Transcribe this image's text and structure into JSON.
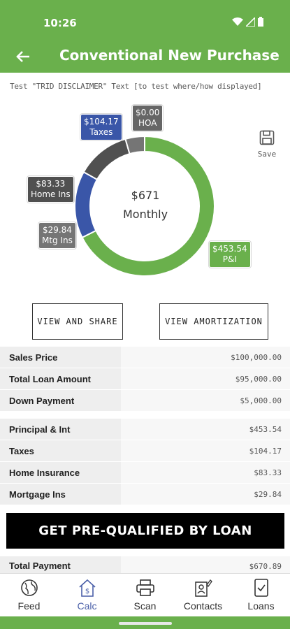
{
  "status_bar": {
    "time": "10:26"
  },
  "header": {
    "title": "Conventional New Purchase"
  },
  "disclaimer": "Test \"TRID DISCLAIMER\" Text [to test where/how displayed]",
  "summary": {
    "amount": "$671",
    "label": "Monthly"
  },
  "chart_data": {
    "type": "pie",
    "categories": [
      "P&I",
      "Taxes",
      "HOA",
      "Home Ins",
      "Mtg Ins"
    ],
    "values": [
      453.54,
      104.17,
      0.0,
      83.33,
      29.84
    ],
    "colors": [
      "#6ab04c",
      "#3a56a8",
      "#666666",
      "#505050",
      "#757575"
    ],
    "labels": [
      {
        "amount": "$453.54",
        "name": "P&I"
      },
      {
        "amount": "$104.17",
        "name": "Taxes"
      },
      {
        "amount": "$0.00",
        "name": "HOA"
      },
      {
        "amount": "$83.33",
        "name": "Home Ins"
      },
      {
        "amount": "$29.84",
        "name": "Mtg Ins"
      }
    ]
  },
  "save": {
    "label": "Save",
    "icon": "save-icon"
  },
  "buttons": {
    "share": "VIEW AND SHARE",
    "amortization": "VIEW AMORTIZATION"
  },
  "loan_details": [
    {
      "label": "Sales Price",
      "value": "$100,000.00"
    },
    {
      "label": "Total Loan Amount",
      "value": "$95,000.00"
    },
    {
      "label": "Down Payment",
      "value": "$5,000.00"
    }
  ],
  "payment_details": [
    {
      "label": "Principal & Int",
      "value": "$453.54"
    },
    {
      "label": "Taxes",
      "value": "$104.17"
    },
    {
      "label": "Home Insurance",
      "value": "$83.33"
    },
    {
      "label": "Mortgage Ins",
      "value": "$29.84"
    }
  ],
  "cta": "GET PRE-QUALIFIED BY LOAN",
  "total": {
    "label": "Total Payment",
    "value": "$670.89"
  },
  "nav": [
    {
      "label": "Feed",
      "icon": "globe-icon"
    },
    {
      "label": "Calc",
      "icon": "calc-house-icon"
    },
    {
      "label": "Scan",
      "icon": "printer-icon"
    },
    {
      "label": "Contacts",
      "icon": "contacts-icon"
    },
    {
      "label": "Loans",
      "icon": "checklist-icon"
    }
  ],
  "colors": {
    "brand": "#6ab04c",
    "accent": "#4a5fa8"
  }
}
